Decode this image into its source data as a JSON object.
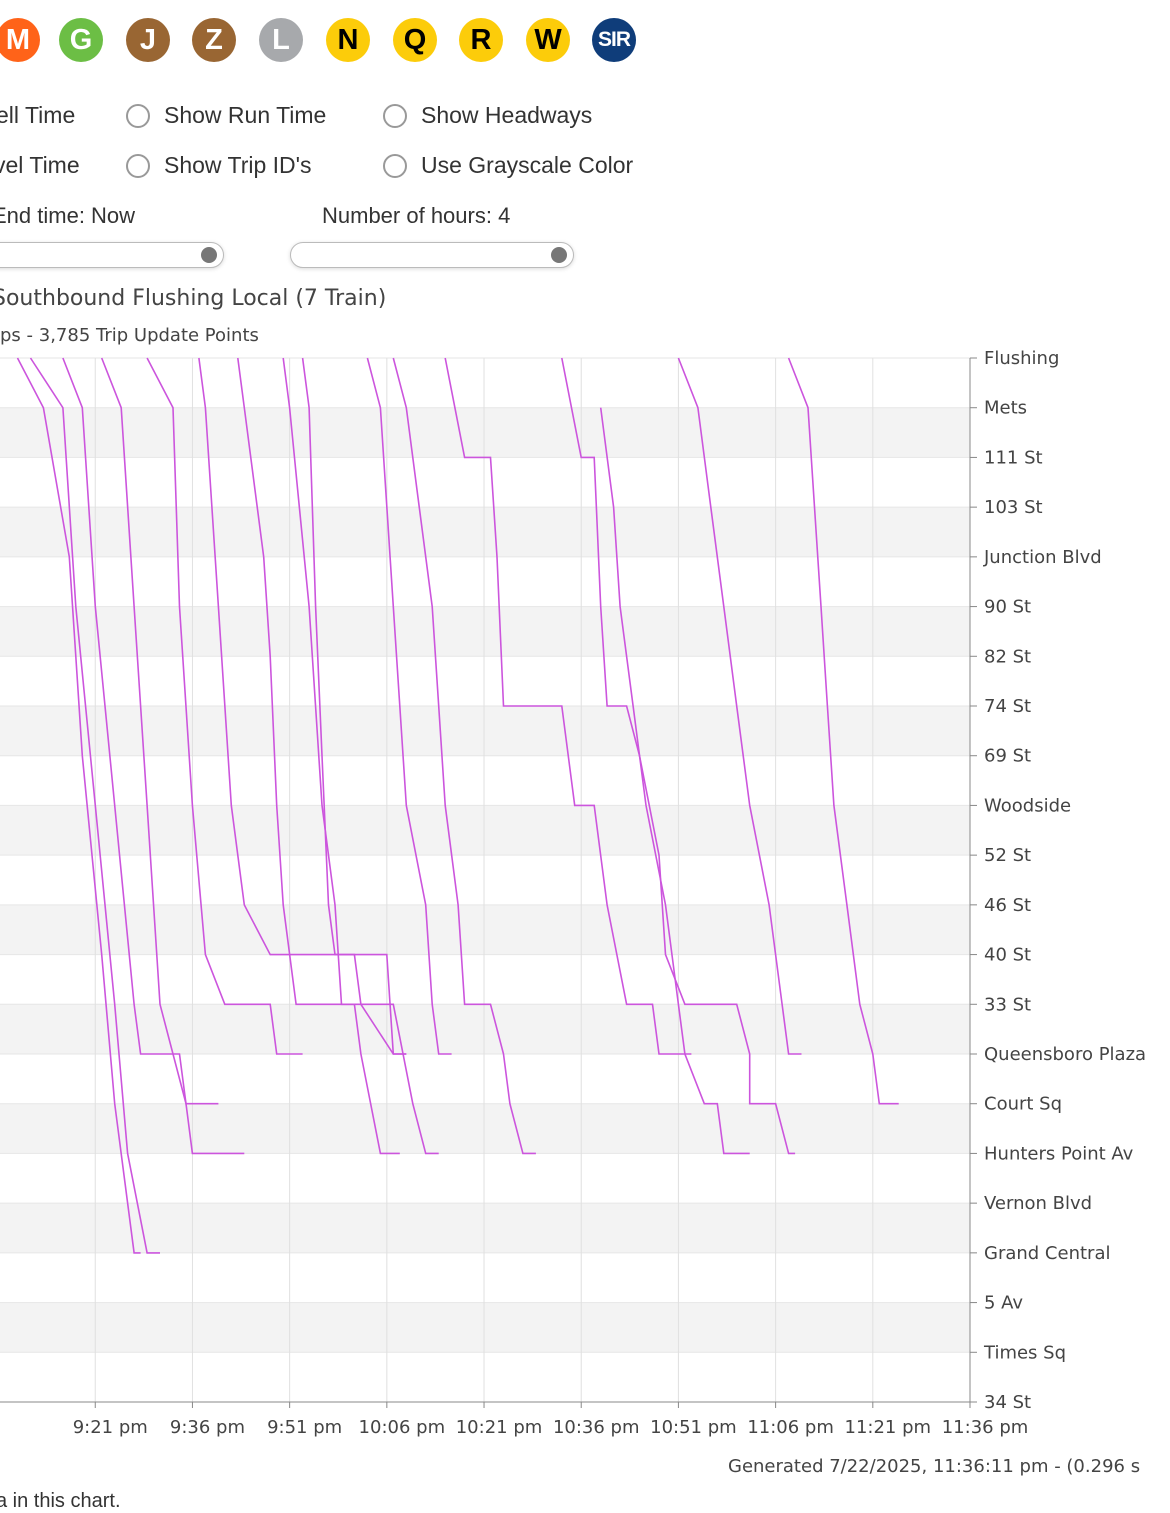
{
  "lines": [
    {
      "label": "M",
      "color": "#FF6319",
      "text_color": "#ffffff"
    },
    {
      "label": "G",
      "color": "#6CBE45",
      "text_color": "#ffffff"
    },
    {
      "label": "J",
      "color": "#996633",
      "text_color": "#ffffff"
    },
    {
      "label": "Z",
      "color": "#996633",
      "text_color": "#ffffff"
    },
    {
      "label": "L",
      "color": "#A7A9AC",
      "text_color": "#ffffff"
    },
    {
      "label": "N",
      "color": "#FCCC0A",
      "text_color": "#000000"
    },
    {
      "label": "Q",
      "color": "#FCCC0A",
      "text_color": "#000000"
    },
    {
      "label": "R",
      "color": "#FCCC0A",
      "text_color": "#000000"
    },
    {
      "label": "W",
      "color": "#FCCC0A",
      "text_color": "#000000"
    },
    {
      "label": "SIR",
      "color": "#0F3D7A",
      "text_color": "#ffffff"
    }
  ],
  "options": {
    "dwell_time": "ell Time",
    "travel_time": "vel Time",
    "show_run_time": "Show Run Time",
    "show_trip_ids": "Show Trip ID's",
    "show_headways": "Show Headways",
    "use_grayscale": "Use Grayscale Color"
  },
  "sliders": {
    "end_time_label": "End time: Now",
    "hours_label": "Number of hours: 4"
  },
  "chart_title": "Southbound Flushing Local (7 Train)",
  "chart_subtitle": "ps - 3,785 Trip Update Points",
  "footer": "Generated 7/22/2025, 11:36:11 pm - (0.296 s",
  "note": "a in this chart.",
  "trace_color": "#CC55DD",
  "chart_data": {
    "type": "line",
    "x_tick_labels": [
      "9:21 pm",
      "9:36 pm",
      "9:51 pm",
      "10:06 pm",
      "10:21 pm",
      "10:36 pm",
      "10:51 pm",
      "11:06 pm",
      "11:21 pm",
      "11:36 pm"
    ],
    "x_tick_times": [
      0,
      15,
      30,
      45,
      60,
      75,
      90,
      105,
      120,
      135
    ],
    "x_range_minutes": [
      -14.7,
      135
    ],
    "stations": [
      "Flushing",
      "Mets",
      "111 St",
      "103 St",
      "Junction Blvd",
      "90 St",
      "82 St",
      "74 St",
      "69 St",
      "Woodside",
      "52 St",
      "46 St",
      "40 St",
      "33 St",
      "Queensboro Plaza",
      "Court Sq",
      "Hunters Point Av",
      "Vernon Blvd",
      "Grand Central",
      "5 Av",
      "Times Sq",
      "34 St"
    ],
    "trips": [
      [
        [
          -12,
          0
        ],
        [
          -8,
          1
        ],
        [
          -4,
          4
        ],
        [
          -2,
          8
        ],
        [
          1,
          12
        ],
        [
          3,
          15
        ],
        [
          6,
          18
        ],
        [
          7,
          18
        ]
      ],
      [
        [
          -10,
          0
        ],
        [
          -5,
          1
        ],
        [
          -3,
          5
        ],
        [
          0,
          9
        ],
        [
          3,
          13
        ],
        [
          5,
          16
        ],
        [
          8,
          18
        ],
        [
          10,
          18
        ]
      ],
      [
        [
          -5,
          0
        ],
        [
          -2,
          1
        ],
        [
          0,
          5
        ],
        [
          3,
          9
        ],
        [
          6,
          13
        ],
        [
          7,
          14
        ],
        [
          13,
          14
        ],
        [
          14,
          15
        ],
        [
          19,
          15
        ]
      ],
      [
        [
          1,
          0
        ],
        [
          4,
          1
        ],
        [
          6,
          5
        ],
        [
          8,
          9
        ],
        [
          10,
          13
        ],
        [
          12,
          14
        ],
        [
          14,
          15
        ],
        [
          15,
          16
        ],
        [
          23,
          16
        ]
      ],
      [
        [
          8,
          0
        ],
        [
          12,
          1
        ],
        [
          13,
          5
        ],
        [
          15,
          9
        ],
        [
          17,
          12
        ],
        [
          20,
          13
        ],
        [
          27,
          13
        ],
        [
          28,
          14
        ],
        [
          32,
          14
        ]
      ],
      [
        [
          16,
          0
        ],
        [
          17,
          1
        ],
        [
          19,
          5
        ],
        [
          21,
          9
        ],
        [
          23,
          11
        ],
        [
          27,
          12
        ],
        [
          40,
          12
        ],
        [
          41,
          13
        ],
        [
          46,
          14
        ],
        [
          48,
          14
        ]
      ],
      [
        [
          22,
          0
        ],
        [
          23,
          1
        ],
        [
          26,
          4
        ],
        [
          27,
          6
        ],
        [
          28,
          9
        ],
        [
          29,
          11
        ],
        [
          31,
          13
        ],
        [
          40,
          13
        ],
        [
          41,
          14
        ],
        [
          44,
          16
        ],
        [
          47,
          16
        ]
      ],
      [
        [
          29,
          0
        ],
        [
          30,
          1
        ],
        [
          33,
          5
        ],
        [
          35,
          9
        ],
        [
          37,
          11
        ],
        [
          38,
          13
        ],
        [
          46,
          13
        ],
        [
          49,
          15
        ],
        [
          51,
          16
        ],
        [
          53,
          16
        ]
      ],
      [
        [
          32,
          0
        ],
        [
          33,
          1
        ],
        [
          34,
          5
        ],
        [
          35,
          8
        ],
        [
          36,
          11
        ],
        [
          37,
          12
        ],
        [
          45,
          12
        ],
        [
          46,
          14
        ],
        [
          48,
          14
        ]
      ],
      [
        [
          42,
          0
        ],
        [
          44,
          1
        ],
        [
          46,
          5
        ],
        [
          48,
          9
        ],
        [
          51,
          11
        ],
        [
          52,
          13
        ],
        [
          53,
          14
        ],
        [
          55,
          14
        ]
      ],
      [
        [
          46,
          0
        ],
        [
          48,
          1
        ],
        [
          52,
          5
        ],
        [
          54,
          9
        ],
        [
          56,
          11
        ],
        [
          57,
          13
        ],
        [
          61,
          13
        ],
        [
          63,
          14
        ],
        [
          64,
          15
        ],
        [
          66,
          16
        ],
        [
          68,
          16
        ]
      ],
      [
        [
          54,
          0
        ],
        [
          57,
          2
        ],
        [
          61,
          2
        ],
        [
          62,
          4
        ],
        [
          63,
          7
        ],
        [
          72,
          7
        ],
        [
          74,
          9
        ],
        [
          77,
          9
        ],
        [
          79,
          11
        ],
        [
          82,
          13
        ],
        [
          86,
          13
        ],
        [
          87,
          14
        ],
        [
          92,
          14
        ]
      ],
      [
        [
          72,
          0
        ],
        [
          75,
          2
        ],
        [
          77,
          2
        ],
        [
          78,
          5
        ],
        [
          79,
          7
        ],
        [
          82,
          7
        ],
        [
          84,
          8
        ],
        [
          87,
          10
        ],
        [
          88,
          12
        ],
        [
          91,
          13
        ],
        [
          99,
          13
        ],
        [
          101,
          14
        ],
        [
          101,
          15
        ],
        [
          105,
          15
        ],
        [
          107,
          16
        ],
        [
          108,
          16
        ]
      ],
      [
        [
          78,
          1
        ],
        [
          80,
          3
        ],
        [
          81,
          5
        ],
        [
          83,
          7
        ],
        [
          85,
          9
        ],
        [
          88,
          11
        ],
        [
          90,
          13
        ],
        [
          91,
          14
        ],
        [
          94,
          15
        ],
        [
          96,
          15
        ],
        [
          97,
          16
        ],
        [
          101,
          16
        ]
      ],
      [
        [
          90,
          0
        ],
        [
          93,
          1
        ],
        [
          95,
          3
        ],
        [
          97,
          5
        ],
        [
          99,
          7
        ],
        [
          101,
          9
        ],
        [
          104,
          11
        ],
        [
          106,
          13
        ],
        [
          107,
          14
        ],
        [
          109,
          14
        ]
      ],
      [
        [
          107,
          0
        ],
        [
          110,
          1
        ],
        [
          111,
          3
        ],
        [
          112,
          5
        ],
        [
          113,
          7
        ],
        [
          114,
          9
        ],
        [
          116,
          11
        ],
        [
          118,
          13
        ],
        [
          120,
          14
        ],
        [
          121,
          15
        ],
        [
          124,
          15
        ]
      ],
      [
        [
          121,
          0
        ],
        [
          121,
          0
        ]
      ]
    ]
  }
}
